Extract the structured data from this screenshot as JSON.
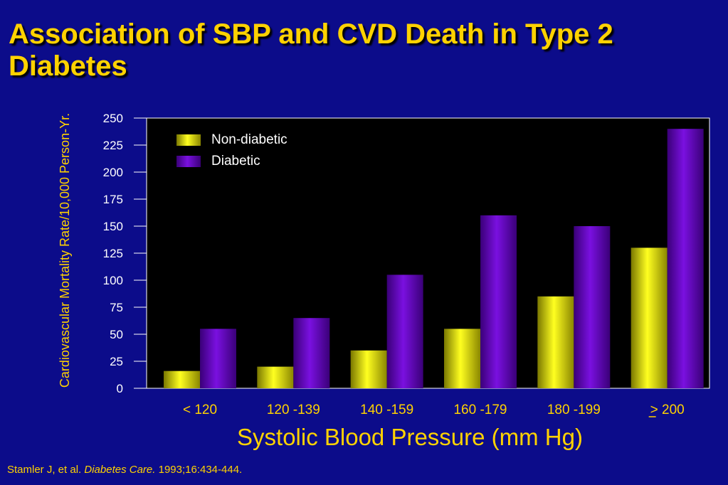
{
  "title": "Association of SBP and CVD Death in Type 2 Diabetes",
  "citation": {
    "authors": "Stamler J, et al.",
    "journal": "Diabetes Care.",
    "details": "1993;16:434-444."
  },
  "colors": {
    "background": "#0c0c8a",
    "text": "#ffd200",
    "non_diabetic": "#f2ee00",
    "diabetic": "#6a00c8"
  },
  "chart_data": {
    "type": "bar",
    "xlabel": "Systolic Blood Pressure (mm Hg)",
    "ylabel": "Cardiovascular Mortality Rate/10,000 Person-Yr.",
    "categories": [
      "< 120",
      "120 -139",
      "140 -159",
      "160 -179",
      "180 -199",
      "> 200"
    ],
    "category_notes": {
      "5": "the \">\" sign is underlined (≥ 200)"
    },
    "yticks": [
      0,
      25,
      50,
      75,
      100,
      125,
      150,
      175,
      200,
      225,
      250
    ],
    "ylim": [
      0,
      250
    ],
    "grid": false,
    "legend_position": "top-left",
    "series": [
      {
        "name": "Non-diabetic",
        "values": [
          16,
          20,
          35,
          55,
          85,
          130
        ]
      },
      {
        "name": "Diabetic",
        "values": [
          55,
          65,
          105,
          160,
          150,
          240
        ]
      }
    ]
  }
}
